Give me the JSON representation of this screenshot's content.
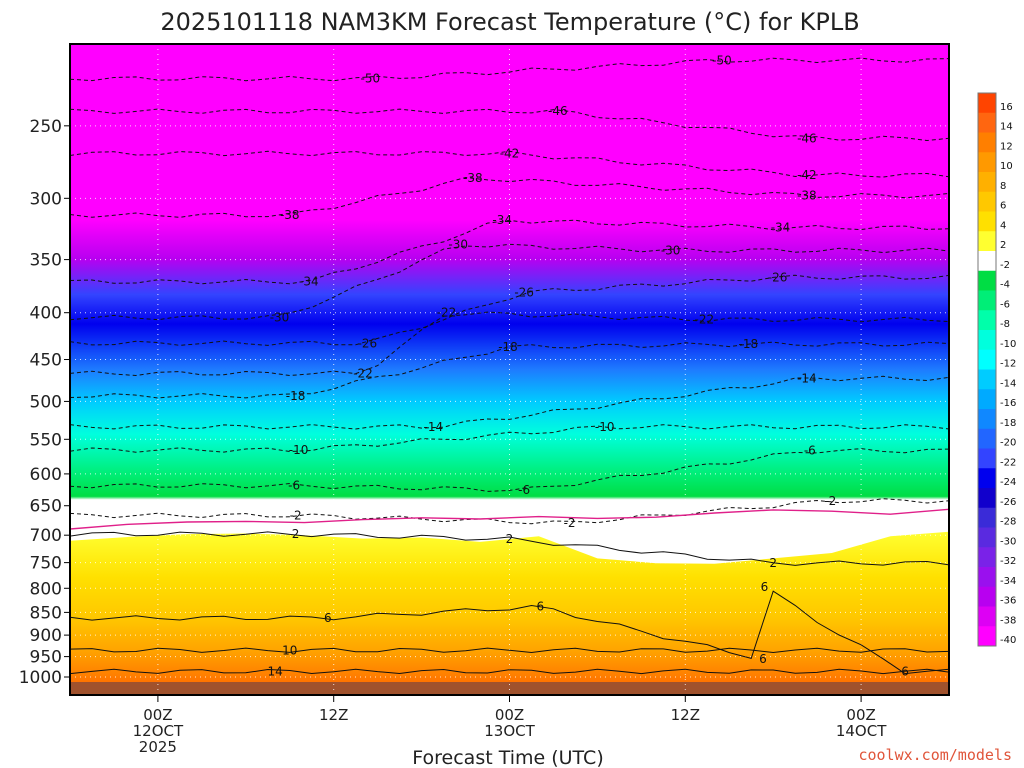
{
  "chart_data": {
    "type": "heatmap",
    "title": "2025101118 NAM3KM Forecast Temperature (°C) for KPLB",
    "xlabel": "Forecast Time (UTC)",
    "ylabel": "",
    "y_ticks": [
      250,
      300,
      350,
      400,
      450,
      500,
      550,
      600,
      650,
      700,
      750,
      800,
      850,
      900,
      950,
      1000
    ],
    "y_range": [
      1000,
      200
    ],
    "x_ticks": [
      {
        "hour": 6,
        "label": "00Z",
        "sub": "12OCT",
        "sub2": "2025"
      },
      {
        "hour": 18,
        "label": "12Z",
        "sub": "",
        "sub2": ""
      },
      {
        "hour": 30,
        "label": "00Z",
        "sub": "13OCT",
        "sub2": ""
      },
      {
        "hour": 42,
        "label": "12Z",
        "sub": "",
        "sub2": ""
      },
      {
        "hour": 54,
        "label": "00Z",
        "sub": "14OCT",
        "sub2": ""
      }
    ],
    "x_range": [
      0,
      60
    ],
    "colorbar": {
      "labels": [
        "16",
        "14",
        "12",
        "10",
        "8",
        "6",
        "4",
        "2",
        "-2",
        "-4",
        "-6",
        "-8",
        "-10",
        "-12",
        "-14",
        "-16",
        "-18",
        "-20",
        "-22",
        "-24",
        "-26",
        "-28",
        "-30",
        "-32",
        "-34",
        "-36",
        "-38",
        "-40"
      ],
      "colors": [
        "#ff4400",
        "#ff6610",
        "#ff7f00",
        "#ff9900",
        "#ffb000",
        "#ffc800",
        "#ffe000",
        "#ffff30",
        "#ffffff",
        "#00dd44",
        "#00ee77",
        "#00ffaa",
        "#00ffdd",
        "#00ffff",
        "#00ccff",
        "#00aaff",
        "#1088ff",
        "#2266ff",
        "#3344ff",
        "#0000ee",
        "#1100cc",
        "#3a2bd8",
        "#5a2ae0",
        "#7a22e8",
        "#9a10ee",
        "#b800f0",
        "#dd00f4",
        "#ff00ff"
      ]
    },
    "contour_labels": [
      {
        "value": "-50",
        "hour": 20.5,
        "p": 222
      },
      {
        "value": "-50",
        "hour": 44.5,
        "p": 212
      },
      {
        "value": "-46",
        "hour": 33.3,
        "p": 241
      },
      {
        "value": "-46",
        "hour": 50.3,
        "p": 258
      },
      {
        "value": "-42",
        "hour": 30.0,
        "p": 268
      },
      {
        "value": "-42",
        "hour": 50.3,
        "p": 283
      },
      {
        "value": "-38",
        "hour": 27.5,
        "p": 285
      },
      {
        "value": "-38",
        "hour": 50.3,
        "p": 298
      },
      {
        "value": "-38",
        "hour": 15.0,
        "p": 313
      },
      {
        "value": "-34",
        "hour": 29.5,
        "p": 317
      },
      {
        "value": "-34",
        "hour": 48.5,
        "p": 323
      },
      {
        "value": "-34",
        "hour": 16.3,
        "p": 370
      },
      {
        "value": "-30",
        "hour": 26.5,
        "p": 337
      },
      {
        "value": "-30",
        "hour": 41.0,
        "p": 342
      },
      {
        "value": "-30",
        "hour": 14.3,
        "p": 405
      },
      {
        "value": "-26",
        "hour": 31.0,
        "p": 380
      },
      {
        "value": "-26",
        "hour": 48.3,
        "p": 366
      },
      {
        "value": "-26",
        "hour": 20.3,
        "p": 432
      },
      {
        "value": "-22",
        "hour": 25.7,
        "p": 400
      },
      {
        "value": "-22",
        "hour": 43.3,
        "p": 407
      },
      {
        "value": "-22",
        "hour": 20.0,
        "p": 466
      },
      {
        "value": "-18",
        "hour": 29.9,
        "p": 436
      },
      {
        "value": "-18",
        "hour": 46.3,
        "p": 433
      },
      {
        "value": "-18",
        "hour": 15.4,
        "p": 493
      },
      {
        "value": "-14",
        "hour": 50.3,
        "p": 472
      },
      {
        "value": "-14",
        "hour": 24.8,
        "p": 533
      },
      {
        "value": "-10",
        "hour": 15.6,
        "p": 565
      },
      {
        "value": "-10",
        "hour": 36.5,
        "p": 533
      },
      {
        "value": "-6",
        "hour": 15.3,
        "p": 618
      },
      {
        "value": "-6",
        "hour": 31.0,
        "p": 625
      },
      {
        "value": "-6",
        "hour": 50.5,
        "p": 566
      },
      {
        "value": "-2",
        "hour": 15.4,
        "p": 666
      },
      {
        "value": "-2",
        "hour": 34.1,
        "p": 679
      },
      {
        "value": "-2",
        "hour": 51.9,
        "p": 642
      },
      {
        "value": "2",
        "hour": 15.4,
        "p": 698
      },
      {
        "value": "2",
        "hour": 30.0,
        "p": 707
      },
      {
        "value": "2",
        "hour": 48.0,
        "p": 751
      },
      {
        "value": "6",
        "hour": 17.6,
        "p": 862
      },
      {
        "value": "6",
        "hour": 32.1,
        "p": 838
      },
      {
        "value": "6",
        "hour": 47.4,
        "p": 797
      },
      {
        "value": "6",
        "hour": 47.3,
        "p": 956
      },
      {
        "value": "6",
        "hour": 57.0,
        "p": 986
      },
      {
        "value": "10",
        "hour": 15.0,
        "p": 935
      },
      {
        "value": "14",
        "hour": 14.0,
        "p": 986
      }
    ],
    "freezing_line_p": [
      684,
      676,
      672,
      671,
      673,
      668,
      665,
      667,
      663,
      666,
      664,
      657,
      652,
      654,
      659,
      651
    ],
    "isotherm_2_p": [
      710,
      703,
      698,
      697,
      700,
      706,
      704,
      712,
      702,
      742,
      751,
      752,
      742,
      732,
      702,
      694
    ]
  },
  "attribution": "coolwx.com/models"
}
